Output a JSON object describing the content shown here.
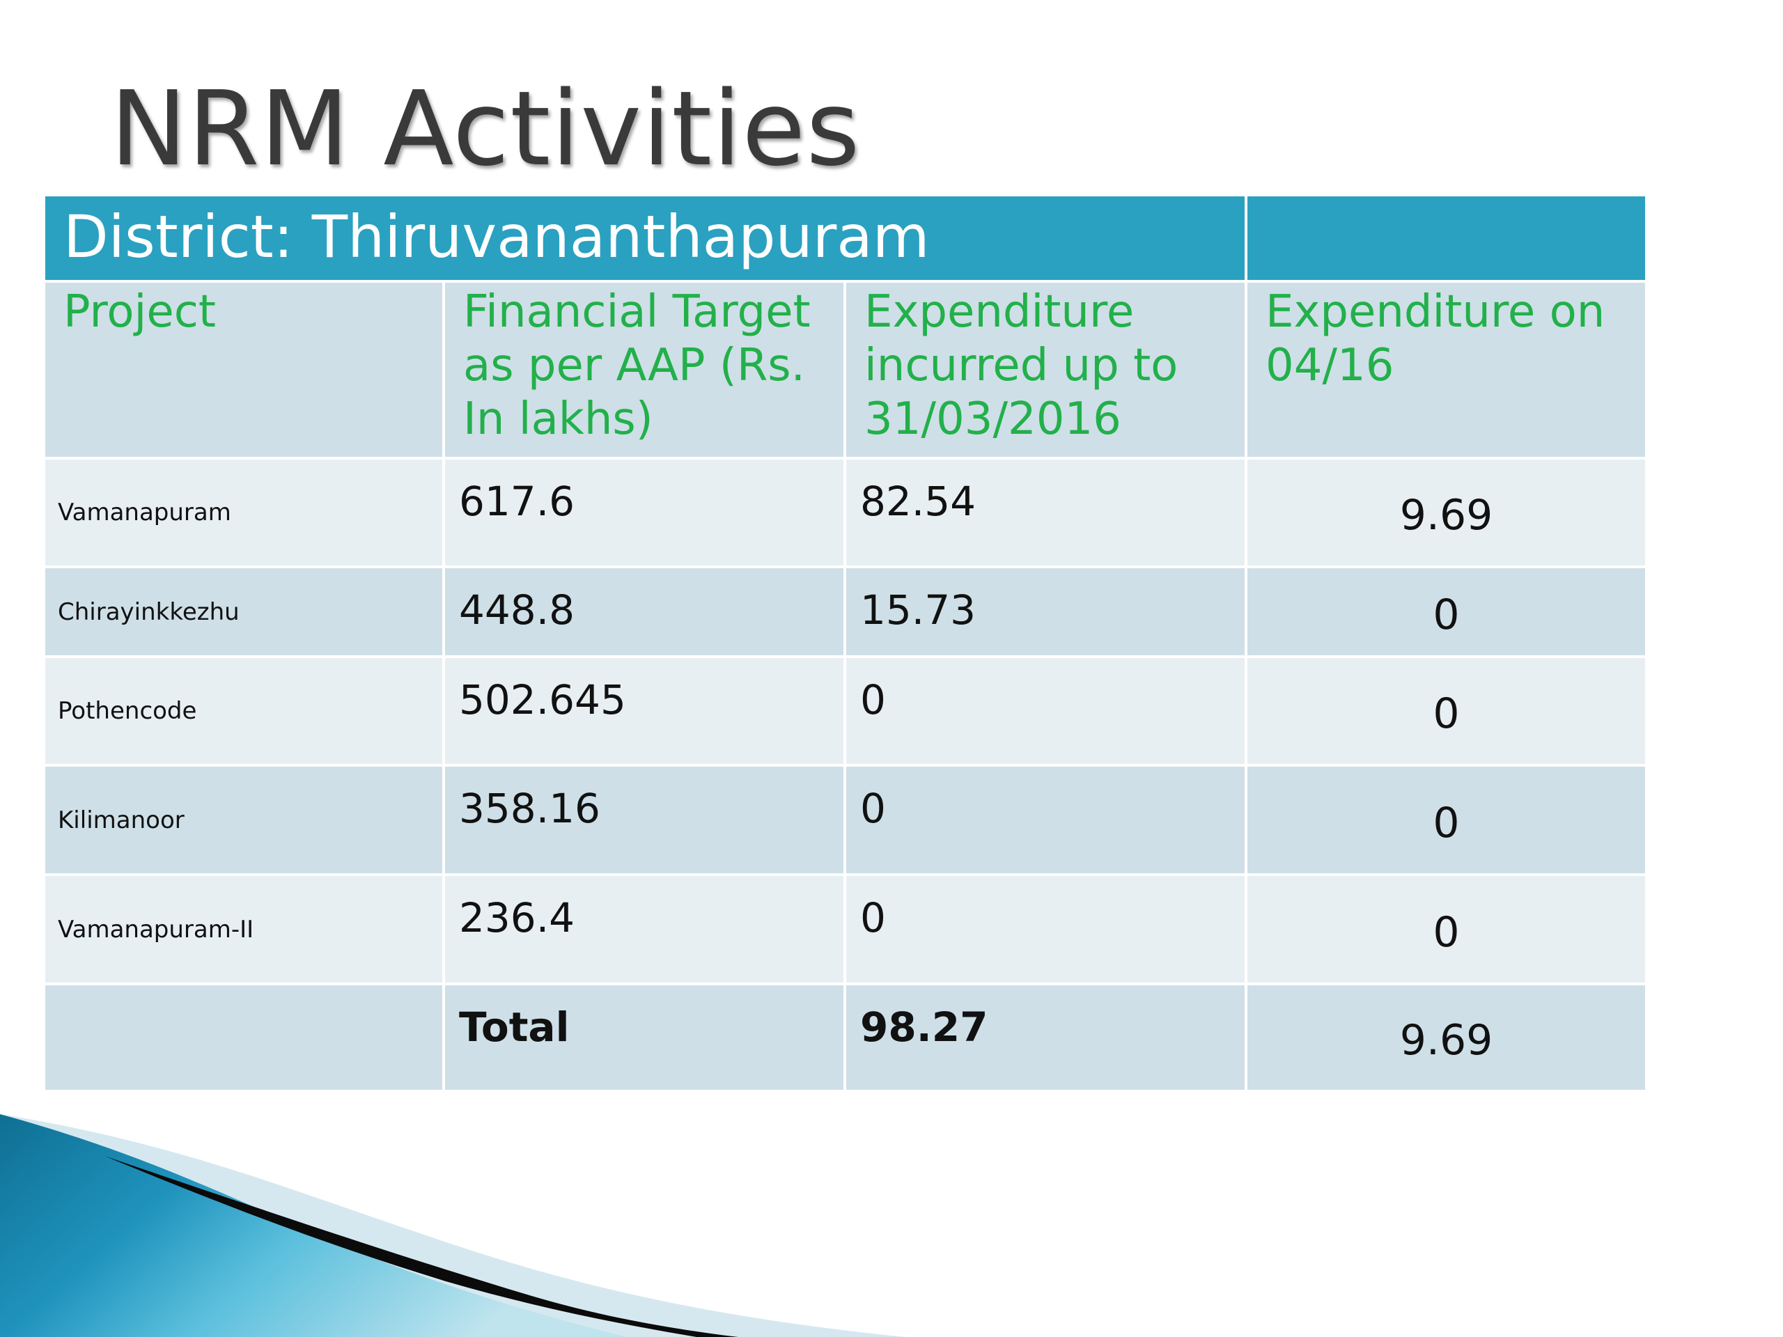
{
  "slide_title": "NRM Activities",
  "table": {
    "district_label": "District: Thiruvananthapuram",
    "headers": [
      "Project",
      "Financial Target as per AAP (Rs. In lakhs)",
      "Expenditure incurred up to 31/03/2016",
      "Expenditure on 04/16"
    ],
    "rows": [
      {
        "project": "Vamanapuram",
        "target": "617.6",
        "expenditure": "82.54",
        "exp_0416": "9.69"
      },
      {
        "project": "Chirayinkkezhu",
        "target": "448.8",
        "expenditure": "15.73",
        "exp_0416": "0"
      },
      {
        "project": "Pothencode",
        "target": "502.645",
        "expenditure": "0",
        "exp_0416": "0"
      },
      {
        "project": "Kilimanoor",
        "target": "358.16",
        "expenditure": "0",
        "exp_0416": "0"
      },
      {
        "project": "Vamanapuram-II",
        "target": "236.4",
        "expenditure": "0",
        "exp_0416": "0"
      }
    ],
    "total": {
      "project": "",
      "label": "Total",
      "expenditure": "98.27",
      "exp_0416": "9.69"
    }
  },
  "colors": {
    "district_band": "#2aa1c0",
    "header_text": "#22b04a",
    "row_light": "#e8eff3",
    "row_dark": "#cedfe7"
  }
}
